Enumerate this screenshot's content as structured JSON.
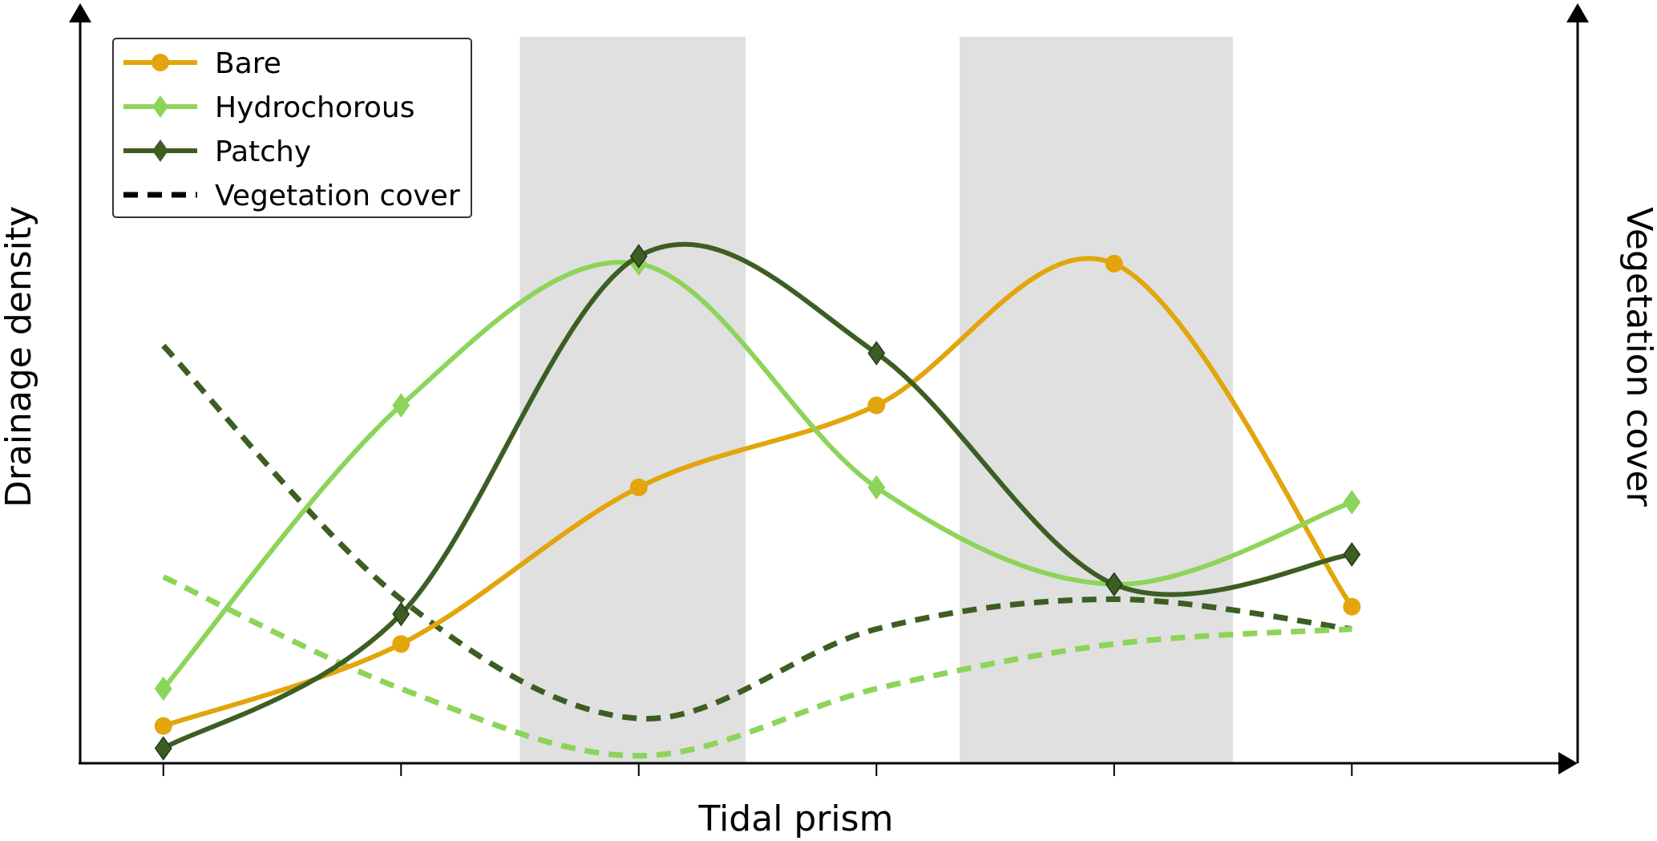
{
  "chart_data": {
    "type": "line",
    "xlabel": "Tidal prism",
    "ylabel": "Drainage density",
    "y2label": "Vegetation cover",
    "x": [
      1,
      2,
      3,
      4,
      5,
      6
    ],
    "xlim": [
      0.65,
      6.95
    ],
    "ylim": [
      0,
      100
    ],
    "shaded_bands": [
      [
        2.5,
        3.45
      ],
      [
        4.35,
        5.5
      ]
    ],
    "grid": false,
    "legend": {
      "position": "top-left",
      "entries": [
        {
          "label": "Bare",
          "color": "#E2A50B",
          "marker": "circle",
          "style": "solid"
        },
        {
          "label": "Hydrochorous",
          "color": "#8DD45A",
          "marker": "diamond",
          "style": "solid"
        },
        {
          "label": "Patchy",
          "color": "#3D5E23",
          "marker": "diamond",
          "style": "solid"
        },
        {
          "label": "Vegetation cover",
          "color": "#000000",
          "marker": "none",
          "style": "dashed"
        }
      ]
    },
    "series": [
      {
        "name": "Bare",
        "color": "#E2A50B",
        "marker": "circle",
        "style": "solid",
        "axis": "left",
        "values": [
          5,
          16,
          37,
          48,
          67,
          21
        ]
      },
      {
        "name": "Hydrochorous",
        "color": "#8DD45A",
        "marker": "diamond",
        "style": "solid",
        "axis": "left",
        "values": [
          10,
          48,
          67,
          37,
          24,
          35
        ]
      },
      {
        "name": "Patchy",
        "color": "#3D5E23",
        "marker": "diamond",
        "style": "solid",
        "axis": "left",
        "values": [
          2,
          20,
          68,
          55,
          24,
          28
        ]
      },
      {
        "name": "Patchy",
        "color": "#3D5E23",
        "marker": "none",
        "style": "dashed",
        "axis": "right",
        "values": [
          56,
          22,
          6,
          18,
          22,
          18
        ]
      },
      {
        "name": "Hydrochorous",
        "color": "#8DD45A",
        "marker": "none",
        "style": "dashed",
        "axis": "right",
        "values": [
          25,
          10,
          1,
          10,
          16,
          18
        ]
      }
    ]
  }
}
